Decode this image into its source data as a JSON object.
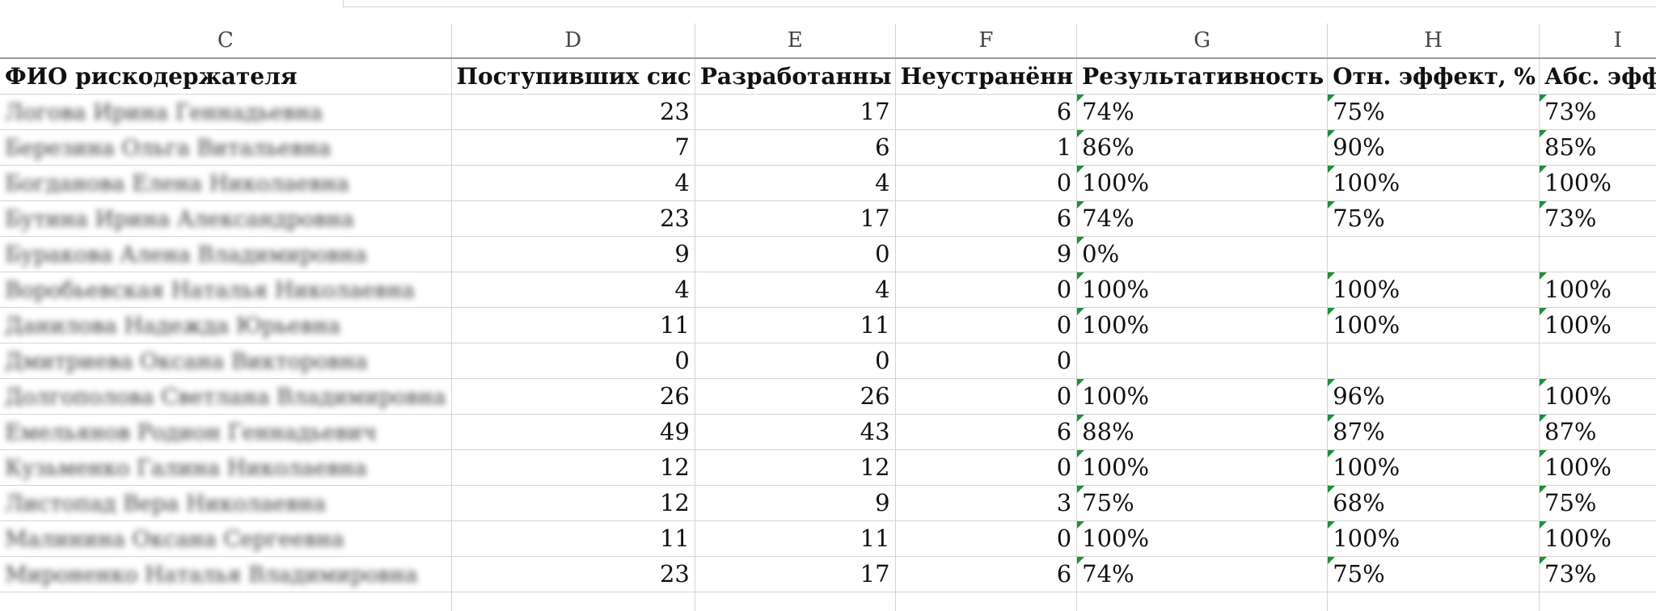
{
  "columns": [
    "C",
    "D",
    "E",
    "F",
    "G",
    "H",
    "I"
  ],
  "headers": [
    "ФИО рискодержателя",
    "Поступивших сис",
    "Разработанны",
    "Неустранённ",
    "Результативность",
    "Отн. эффект, %",
    "Абс. эффек"
  ],
  "rows": [
    {
      "name": "Логова Ирина Геннадьевна",
      "d": "23",
      "e": "17",
      "f": "6",
      "g": "74%",
      "h": "75%",
      "i": "73%"
    },
    {
      "name": "Березина Ольга Витальевна",
      "d": "7",
      "e": "6",
      "f": "1",
      "g": "86%",
      "h": "90%",
      "i": "85%"
    },
    {
      "name": "Богданова Елена Николаевна",
      "d": "4",
      "e": "4",
      "f": "0",
      "g": "100%",
      "h": "100%",
      "i": "100%"
    },
    {
      "name": "Бутина Ирина Александровна",
      "d": "23",
      "e": "17",
      "f": "6",
      "g": "74%",
      "h": "75%",
      "i": "73%"
    },
    {
      "name": "Буракова Алена Владимировна",
      "d": "9",
      "e": "0",
      "f": "9",
      "g": "0%",
      "h": "",
      "i": ""
    },
    {
      "name": "Воробьевская Наталья Николаевна",
      "d": "4",
      "e": "4",
      "f": "0",
      "g": "100%",
      "h": "100%",
      "i": "100%"
    },
    {
      "name": "Данилова Надежда Юрьевна",
      "d": "11",
      "e": "11",
      "f": "0",
      "g": "100%",
      "h": "100%",
      "i": "100%"
    },
    {
      "name": "Дмитриева Оксана Викторовна",
      "d": "0",
      "e": "0",
      "f": "0",
      "g": "",
      "h": "",
      "i": ""
    },
    {
      "name": "Долгополова Светлана Владимировна",
      "d": "26",
      "e": "26",
      "f": "0",
      "g": "100%",
      "h": "96%",
      "i": "100%"
    },
    {
      "name": "Емельянов Родион Геннадьевич",
      "d": "49",
      "e": "43",
      "f": "6",
      "g": "88%",
      "h": "87%",
      "i": "87%"
    },
    {
      "name": "Кузьменко Галина Николаевна",
      "d": "12",
      "e": "12",
      "f": "0",
      "g": "100%",
      "h": "100%",
      "i": "100%"
    },
    {
      "name": "Листопад Вера Николаевна",
      "d": "12",
      "e": "9",
      "f": "3",
      "g": "75%",
      "h": "68%",
      "i": "75%"
    },
    {
      "name": "Малинина Оксана Сергеевна",
      "d": "11",
      "e": "11",
      "f": "0",
      "g": "100%",
      "h": "100%",
      "i": "100%"
    },
    {
      "name": "Мироненко Наталья Владимировна",
      "d": "23",
      "e": "17",
      "f": "6",
      "g": "74%",
      "h": "75%",
      "i": "73%"
    },
    {
      "name": "",
      "d": "",
      "e": "",
      "f": "",
      "g": "",
      "h": "",
      "i": ""
    }
  ],
  "flag_color": "#1f8f3a"
}
